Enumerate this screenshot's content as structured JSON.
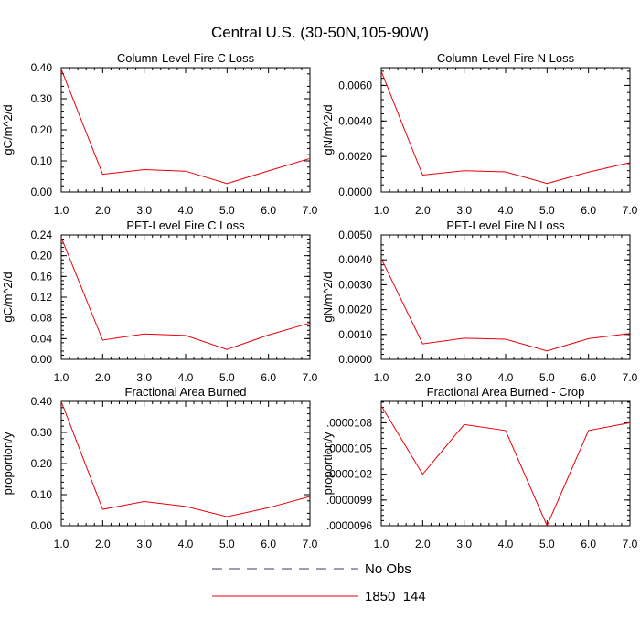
{
  "figure": {
    "title": "Central U.S. (30-50N,105-90W)",
    "legend": {
      "entries": [
        {
          "label": "No Obs",
          "style": "dashed",
          "color": "#3a3a6a"
        },
        {
          "label": "1850_144",
          "style": "solid",
          "color": "#e8000b"
        }
      ]
    }
  },
  "chart_data": [
    {
      "type": "line",
      "title": "Column-Level Fire C Loss",
      "ylabel": "gC/m^2/d",
      "xlabel": "",
      "x": [
        1,
        2,
        3,
        4,
        5,
        6,
        7
      ],
      "xticks": [
        "1.0",
        "2.0",
        "3.0",
        "4.0",
        "5.0",
        "6.0",
        "7.0"
      ],
      "xlim": [
        1,
        7
      ],
      "ylim": [
        0,
        0.4
      ],
      "yticks": [
        0,
        0.1,
        0.2,
        0.3,
        0.4
      ],
      "yticklabels": [
        "0.00",
        "0.10",
        "0.20",
        "0.30",
        "0.40"
      ],
      "series": [
        {
          "name": "1850_144",
          "color": "#e8000b",
          "values": [
            0.395,
            0.057,
            0.072,
            0.067,
            0.027,
            0.068,
            0.108
          ]
        }
      ]
    },
    {
      "type": "line",
      "title": "Column-Level Fire N Loss",
      "ylabel": "gN/m^2/d",
      "xlabel": "",
      "x": [
        1,
        2,
        3,
        4,
        5,
        6,
        7
      ],
      "xticks": [
        "1.0",
        "2.0",
        "3.0",
        "4.0",
        "5.0",
        "6.0",
        "7.0"
      ],
      "xlim": [
        1,
        7
      ],
      "ylim": [
        0,
        0.007
      ],
      "yticks": [
        0,
        0.002,
        0.004,
        0.006
      ],
      "yticklabels": [
        "0.0000",
        "0.0020",
        "0.0040",
        "0.0060"
      ],
      "series": [
        {
          "name": "1850_144",
          "color": "#e8000b",
          "values": [
            0.0068,
            0.00095,
            0.0012,
            0.00113,
            0.00048,
            0.00112,
            0.00165
          ]
        }
      ]
    },
    {
      "type": "line",
      "title": "PFT-Level Fire C Loss",
      "ylabel": "gC/m^2/d",
      "xlabel": "",
      "x": [
        1,
        2,
        3,
        4,
        5,
        6,
        7
      ],
      "xticks": [
        "1.0",
        "2.0",
        "3.0",
        "4.0",
        "5.0",
        "6.0",
        "7.0"
      ],
      "xlim": [
        1,
        7
      ],
      "ylim": [
        0,
        0.24
      ],
      "yticks": [
        0,
        0.04,
        0.08,
        0.12,
        0.16,
        0.2,
        0.24
      ],
      "yticklabels": [
        "0.00",
        "0.04",
        "0.08",
        "0.12",
        "0.16",
        "0.20",
        "0.24"
      ],
      "series": [
        {
          "name": "1850_144",
          "color": "#e8000b",
          "values": [
            0.235,
            0.037,
            0.049,
            0.046,
            0.019,
            0.047,
            0.07
          ]
        }
      ]
    },
    {
      "type": "line",
      "title": "PFT-Level Fire N Loss",
      "ylabel": "gN/m^2/d",
      "xlabel": "",
      "x": [
        1,
        2,
        3,
        4,
        5,
        6,
        7
      ],
      "xticks": [
        "1.0",
        "2.0",
        "3.0",
        "4.0",
        "5.0",
        "6.0",
        "7.0"
      ],
      "xlim": [
        1,
        7
      ],
      "ylim": [
        0,
        0.005
      ],
      "yticks": [
        0,
        0.001,
        0.002,
        0.003,
        0.004,
        0.005
      ],
      "yticklabels": [
        "0.0000",
        "0.0010",
        "0.0020",
        "0.0030",
        "0.0040",
        "0.0050"
      ],
      "series": [
        {
          "name": "1850_144",
          "color": "#e8000b",
          "values": [
            0.00405,
            0.00062,
            0.00085,
            0.00081,
            0.00034,
            0.00083,
            0.00104
          ]
        }
      ]
    },
    {
      "type": "line",
      "title": "Fractional Area Burned",
      "ylabel": "proportion/y",
      "xlabel": "",
      "x": [
        1,
        2,
        3,
        4,
        5,
        6,
        7
      ],
      "xticks": [
        "1.0",
        "2.0",
        "3.0",
        "4.0",
        "5.0",
        "6.0",
        "7.0"
      ],
      "xlim": [
        1,
        7
      ],
      "ylim": [
        0,
        0.4
      ],
      "yticks": [
        0,
        0.1,
        0.2,
        0.3,
        0.4
      ],
      "yticklabels": [
        "0.00",
        "0.10",
        "0.20",
        "0.30",
        "0.40"
      ],
      "series": [
        {
          "name": "1850_144",
          "color": "#e8000b",
          "values": [
            0.4,
            0.053,
            0.078,
            0.062,
            0.029,
            0.058,
            0.094
          ]
        }
      ]
    },
    {
      "type": "line",
      "title": "Fractional Area Burned - Crop",
      "ylabel": "proportion/y",
      "xlabel": "",
      "x": [
        1,
        2,
        3,
        4,
        5,
        6,
        7
      ],
      "xticks": [
        "1.0",
        "2.0",
        "3.0",
        "4.0",
        "5.0",
        "6.0",
        "7.0"
      ],
      "xlim": [
        1,
        7
      ],
      "ylim": [
        9.6e-06,
        1.105e-05
      ],
      "yticks": [
        9.6e-06,
        9.9e-06,
        1.02e-05,
        1.05e-05,
        1.08e-05
      ],
      "yticklabels": [
        ".0000096",
        ".0000099",
        ".0000102",
        ".0000105",
        ".0000108"
      ],
      "series": [
        {
          "name": "1850_144",
          "color": "#e8000b",
          "values": [
            1.1e-05,
            1.02e-05,
            1.078e-05,
            1.071e-05,
            9.6e-06,
            1.071e-05,
            1.08e-05
          ]
        }
      ]
    }
  ]
}
